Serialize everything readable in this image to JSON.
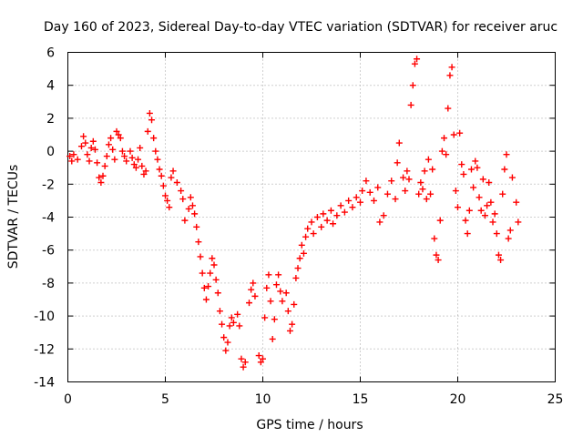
{
  "chart_data": {
    "type": "scatter",
    "title": "Day 160 of 2023, Sidereal Day-to-day VTEC variation (SDTVAR) for receiver aruc",
    "xlabel": "GPS time / hours",
    "ylabel": "SDTVAR / TECUs",
    "xlim": [
      0,
      25
    ],
    "ylim": [
      -14,
      6
    ],
    "xticks": [
      "0",
      "5",
      "10",
      "15",
      "20",
      "25"
    ],
    "yticks": [
      "-14",
      "-12",
      "-10",
      "-8",
      "-6",
      "-4",
      "-2",
      "0",
      "2",
      "4",
      "6"
    ],
    "grid": true,
    "marker": "+",
    "color": "#ff0000",
    "series": [
      {
        "name": "SDTVAR",
        "points": [
          [
            0.1,
            -0.3
          ],
          [
            0.2,
            -0.6
          ],
          [
            0.3,
            -0.2
          ],
          [
            0.5,
            -0.5
          ],
          [
            0.7,
            0.3
          ],
          [
            0.8,
            0.9
          ],
          [
            0.9,
            0.5
          ],
          [
            1.0,
            -0.2
          ],
          [
            1.1,
            -0.6
          ],
          [
            1.2,
            0.2
          ],
          [
            1.3,
            0.6
          ],
          [
            1.4,
            0.1
          ],
          [
            1.5,
            -0.7
          ],
          [
            1.6,
            -1.6
          ],
          [
            1.7,
            -1.9
          ],
          [
            1.8,
            -1.5
          ],
          [
            1.9,
            -0.9
          ],
          [
            2.0,
            -0.3
          ],
          [
            2.1,
            0.4
          ],
          [
            2.2,
            0.8
          ],
          [
            2.3,
            0.1
          ],
          [
            2.4,
            -0.5
          ],
          [
            2.5,
            1.2
          ],
          [
            2.6,
            1.0
          ],
          [
            2.7,
            0.8
          ],
          [
            2.8,
            0.0
          ],
          [
            2.9,
            -0.3
          ],
          [
            3.0,
            -0.6
          ],
          [
            3.2,
            0.0
          ],
          [
            3.3,
            -0.4
          ],
          [
            3.4,
            -0.8
          ],
          [
            3.5,
            -1.0
          ],
          [
            3.6,
            -0.5
          ],
          [
            3.7,
            0.2
          ],
          [
            3.8,
            -0.9
          ],
          [
            3.9,
            -1.4
          ],
          [
            4.0,
            -1.2
          ],
          [
            4.1,
            1.2
          ],
          [
            4.2,
            2.3
          ],
          [
            4.3,
            1.9
          ],
          [
            4.4,
            0.8
          ],
          [
            4.5,
            0.0
          ],
          [
            4.6,
            -0.5
          ],
          [
            4.7,
            -1.1
          ],
          [
            4.8,
            -1.5
          ],
          [
            4.9,
            -2.1
          ],
          [
            5.0,
            -2.7
          ],
          [
            5.1,
            -3.0
          ],
          [
            5.2,
            -3.4
          ],
          [
            5.3,
            -1.6
          ],
          [
            5.4,
            -1.2
          ],
          [
            5.6,
            -1.9
          ],
          [
            5.8,
            -2.4
          ],
          [
            5.9,
            -2.9
          ],
          [
            6.0,
            -4.2
          ],
          [
            6.2,
            -3.5
          ],
          [
            6.3,
            -2.8
          ],
          [
            6.4,
            -3.3
          ],
          [
            6.5,
            -3.8
          ],
          [
            6.6,
            -4.6
          ],
          [
            6.7,
            -5.5
          ],
          [
            6.8,
            -6.4
          ],
          [
            6.9,
            -7.4
          ],
          [
            7.0,
            -8.3
          ],
          [
            7.1,
            -9.0
          ],
          [
            7.2,
            -8.2
          ],
          [
            7.3,
            -7.4
          ],
          [
            7.4,
            -6.5
          ],
          [
            7.5,
            -6.9
          ],
          [
            7.6,
            -7.8
          ],
          [
            7.7,
            -8.6
          ],
          [
            7.8,
            -9.7
          ],
          [
            7.9,
            -10.5
          ],
          [
            8.0,
            -11.3
          ],
          [
            8.1,
            -12.1
          ],
          [
            8.2,
            -11.6
          ],
          [
            8.3,
            -10.6
          ],
          [
            8.4,
            -10.1
          ],
          [
            8.5,
            -10.4
          ],
          [
            8.7,
            -9.9
          ],
          [
            8.8,
            -10.6
          ],
          [
            8.9,
            -12.6
          ],
          [
            9.0,
            -13.1
          ],
          [
            9.1,
            -12.8
          ],
          [
            9.3,
            -9.2
          ],
          [
            9.4,
            -8.4
          ],
          [
            9.5,
            -8.0
          ],
          [
            9.6,
            -8.8
          ],
          [
            9.8,
            -12.4
          ],
          [
            9.9,
            -12.8
          ],
          [
            10.0,
            -12.6
          ],
          [
            10.1,
            -10.1
          ],
          [
            10.2,
            -8.3
          ],
          [
            10.3,
            -7.5
          ],
          [
            10.4,
            -9.1
          ],
          [
            10.5,
            -11.4
          ],
          [
            10.6,
            -10.2
          ],
          [
            10.7,
            -8.1
          ],
          [
            10.8,
            -7.5
          ],
          [
            10.9,
            -8.5
          ],
          [
            11.0,
            -9.1
          ],
          [
            11.2,
            -8.6
          ],
          [
            11.3,
            -9.7
          ],
          [
            11.4,
            -10.9
          ],
          [
            11.5,
            -10.5
          ],
          [
            11.6,
            -9.3
          ],
          [
            11.7,
            -7.7
          ],
          [
            11.8,
            -7.1
          ],
          [
            11.9,
            -6.5
          ],
          [
            12.0,
            -5.7
          ],
          [
            12.1,
            -6.2
          ],
          [
            12.2,
            -5.2
          ],
          [
            12.3,
            -4.7
          ],
          [
            12.5,
            -4.3
          ],
          [
            12.6,
            -5.0
          ],
          [
            12.8,
            -4.0
          ],
          [
            13.0,
            -4.6
          ],
          [
            13.1,
            -3.8
          ],
          [
            13.3,
            -4.2
          ],
          [
            13.5,
            -3.6
          ],
          [
            13.6,
            -4.4
          ],
          [
            13.8,
            -3.9
          ],
          [
            14.0,
            -3.3
          ],
          [
            14.2,
            -3.7
          ],
          [
            14.4,
            -3.0
          ],
          [
            14.6,
            -3.4
          ],
          [
            14.8,
            -2.8
          ],
          [
            15.0,
            -3.1
          ],
          [
            15.1,
            -2.4
          ],
          [
            15.3,
            -1.8
          ],
          [
            15.5,
            -2.5
          ],
          [
            15.7,
            -3.0
          ],
          [
            15.9,
            -2.2
          ],
          [
            16.0,
            -4.3
          ],
          [
            16.2,
            -3.9
          ],
          [
            16.4,
            -2.6
          ],
          [
            16.6,
            -1.8
          ],
          [
            16.8,
            -2.9
          ],
          [
            16.9,
            -0.7
          ],
          [
            17.0,
            0.5
          ],
          [
            17.2,
            -1.6
          ],
          [
            17.3,
            -2.4
          ],
          [
            17.4,
            -1.2
          ],
          [
            17.5,
            -1.7
          ],
          [
            17.6,
            2.8
          ],
          [
            17.7,
            4.0
          ],
          [
            17.8,
            5.3
          ],
          [
            17.9,
            5.6
          ],
          [
            18.0,
            -2.6
          ],
          [
            18.1,
            -1.9
          ],
          [
            18.2,
            -2.3
          ],
          [
            18.3,
            -1.2
          ],
          [
            18.4,
            -2.9
          ],
          [
            18.5,
            -0.5
          ],
          [
            18.6,
            -2.6
          ],
          [
            18.7,
            -1.1
          ],
          [
            18.8,
            -5.3
          ],
          [
            18.9,
            -6.3
          ],
          [
            19.0,
            -6.6
          ],
          [
            19.1,
            -4.2
          ],
          [
            19.2,
            0.0
          ],
          [
            19.3,
            0.8
          ],
          [
            19.4,
            -0.2
          ],
          [
            19.5,
            2.6
          ],
          [
            19.6,
            4.6
          ],
          [
            19.7,
            5.1
          ],
          [
            19.8,
            1.0
          ],
          [
            19.9,
            -2.4
          ],
          [
            20.0,
            -3.4
          ],
          [
            20.1,
            1.1
          ],
          [
            20.2,
            -0.8
          ],
          [
            20.3,
            -1.4
          ],
          [
            20.4,
            -4.2
          ],
          [
            20.5,
            -5.0
          ],
          [
            20.6,
            -3.6
          ],
          [
            20.7,
            -1.1
          ],
          [
            20.8,
            -2.2
          ],
          [
            20.9,
            -0.6
          ],
          [
            21.0,
            -1.0
          ],
          [
            21.1,
            -2.8
          ],
          [
            21.2,
            -3.6
          ],
          [
            21.3,
            -1.7
          ],
          [
            21.4,
            -3.9
          ],
          [
            21.5,
            -3.3
          ],
          [
            21.6,
            -1.9
          ],
          [
            21.7,
            -3.1
          ],
          [
            21.8,
            -4.3
          ],
          [
            21.9,
            -3.8
          ],
          [
            22.0,
            -5.0
          ],
          [
            22.1,
            -6.3
          ],
          [
            22.2,
            -6.6
          ],
          [
            22.3,
            -2.6
          ],
          [
            22.4,
            -1.1
          ],
          [
            22.5,
            -0.2
          ],
          [
            22.6,
            -5.3
          ],
          [
            22.7,
            -4.8
          ],
          [
            22.8,
            -1.6
          ],
          [
            23.0,
            -3.1
          ],
          [
            23.1,
            -4.3
          ]
        ]
      }
    ]
  }
}
